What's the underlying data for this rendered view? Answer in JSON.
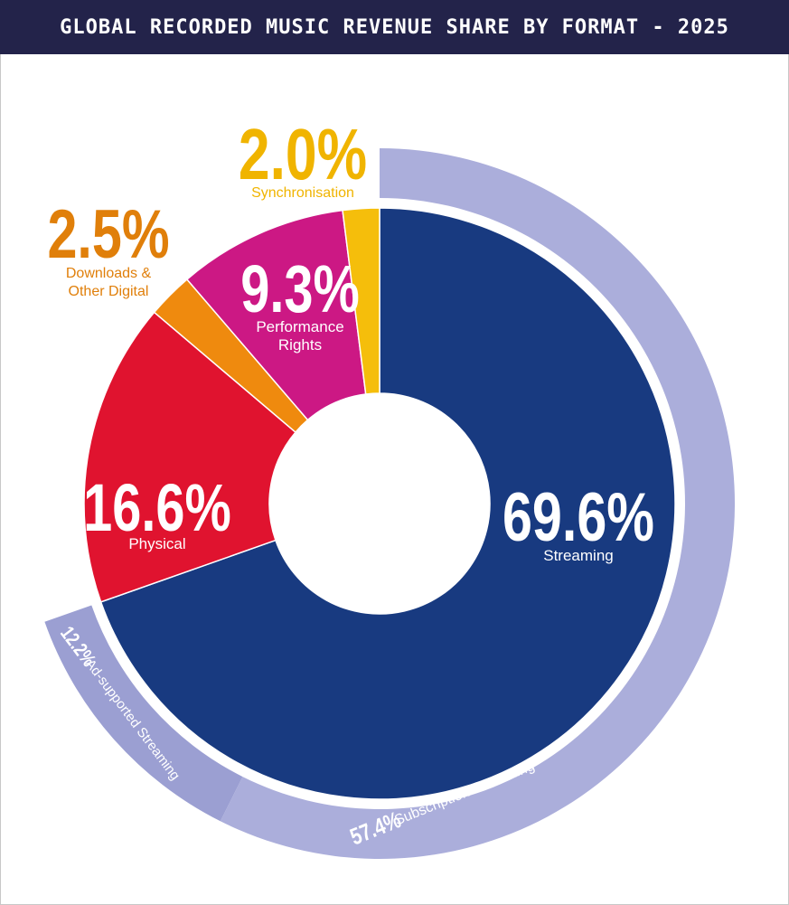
{
  "chart_data": {
    "type": "pie",
    "title": "GLOBAL RECORDED MUSIC REVENUE SHARE BY FORMAT - 2025",
    "slices": [
      {
        "name": "Streaming",
        "value": 69.6,
        "value_label": "69.6%",
        "label_lines": [
          "Streaming"
        ],
        "color": "#183a80",
        "label_color": "#ffffff",
        "text_color": "#ffffff"
      },
      {
        "name": "Physical",
        "value": 16.6,
        "value_label": "16.6%",
        "label_lines": [
          "Physical"
        ],
        "color": "#e0132f",
        "label_color": "#ffffff",
        "text_color": "#ffffff"
      },
      {
        "name": "Downloads & Other Digital",
        "value": 2.5,
        "value_label": "2.5%",
        "label_lines": [
          "Downloads &",
          "Other Digital"
        ],
        "color": "#ef8a0e",
        "label_color": "#e07f0a",
        "text_color": "#e07f0a"
      },
      {
        "name": "Performance Rights",
        "value": 9.3,
        "value_label": "9.3%",
        "label_lines": [
          "Performance",
          "Rights"
        ],
        "color": "#cc1884",
        "label_color": "#ffffff",
        "text_color": "#ffffff"
      },
      {
        "name": "Synchronisation",
        "value": 2.0,
        "value_label": "2.0%",
        "label_lines": [
          "Synchronisation"
        ],
        "color": "#f5be0b",
        "label_color": "#f0b400",
        "text_color": "#f0b400"
      }
    ],
    "outer_ring": [
      {
        "name": "Subscription Streaming",
        "value": 57.4,
        "value_label": "57.4%",
        "label": "Subscription Streaming",
        "color": "#abaedb"
      },
      {
        "name": "Ad-supported Streaming",
        "value": 12.2,
        "value_label": "12.2%",
        "label": "Ad-supported Streaming",
        "color": "#9b9fd2"
      }
    ],
    "legend": "none"
  },
  "colors": {
    "header_bg": "#23234a",
    "header_text": "#ffffff",
    "ring_text": "#ffffff"
  }
}
